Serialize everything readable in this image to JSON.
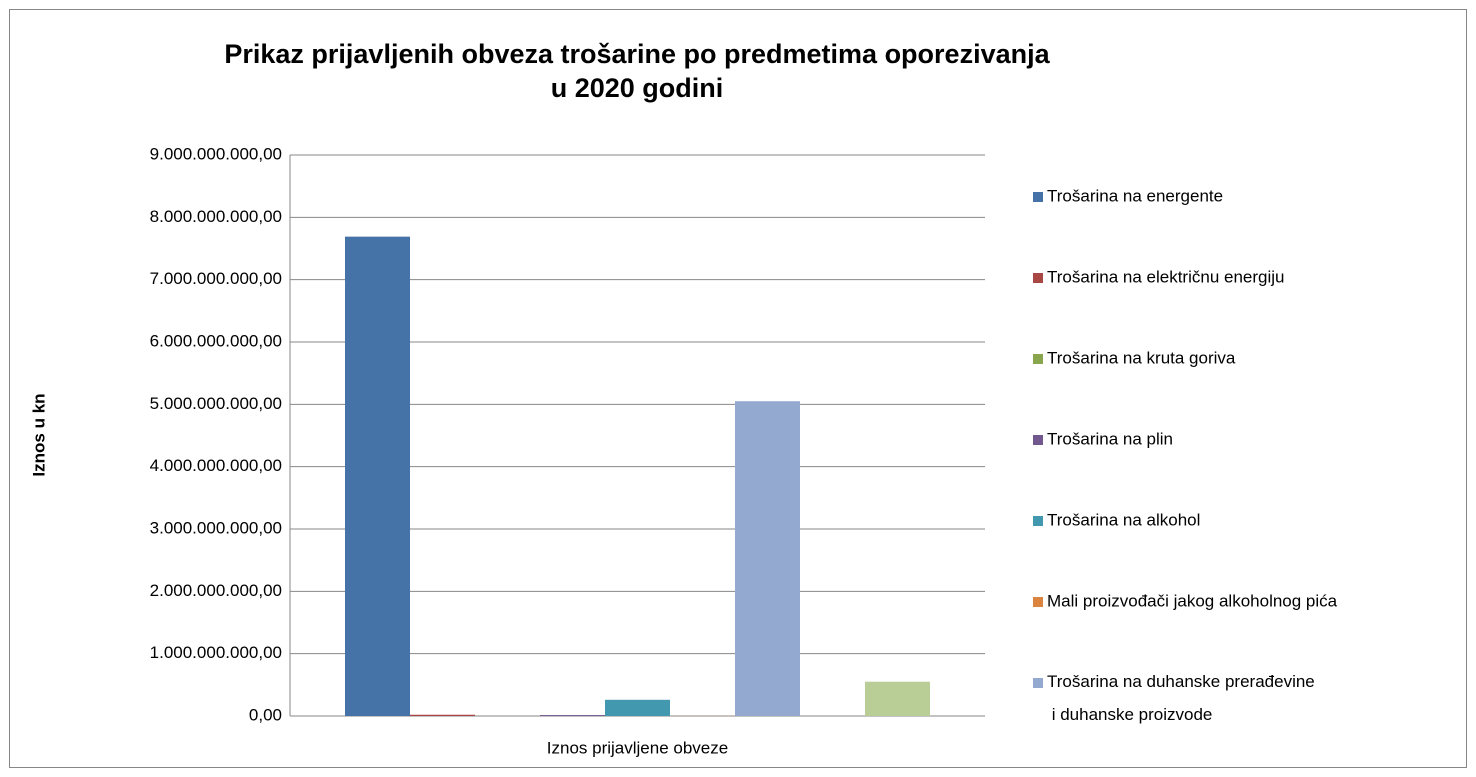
{
  "chart_data": {
    "type": "bar",
    "title": "Prikaz prijavljenih obveza trošarine po predmetima oporezivanja\nu 2020 godini",
    "y_label": "Iznos u kn",
    "categories": [
      "Iznos prijavljene obveze"
    ],
    "ylim": [
      0,
      9000000000
    ],
    "yticks": [
      {
        "value": 0,
        "label": "0,00"
      },
      {
        "value": 1000000000,
        "label": "1.000.000.000,00"
      },
      {
        "value": 2000000000,
        "label": "2.000.000.000,00"
      },
      {
        "value": 3000000000,
        "label": "3.000.000.000,00"
      },
      {
        "value": 4000000000,
        "label": "4.000.000.000,00"
      },
      {
        "value": 5000000000,
        "label": "5.000.000.000,00"
      },
      {
        "value": 6000000000,
        "label": "6.000.000.000,00"
      },
      {
        "value": 7000000000,
        "label": "7.000.000.000,00"
      },
      {
        "value": 8000000000,
        "label": "8.000.000.000,00"
      },
      {
        "value": 9000000000,
        "label": "9.000.000.000,00"
      }
    ],
    "grid": true,
    "legend": "right",
    "series": [
      {
        "name": "Trošarina na energente",
        "color": "#4572A7",
        "values": [
          7690000000
        ]
      },
      {
        "name": "Trošarina na električnu energiju",
        "color": "#AA4643",
        "values": [
          20000000
        ]
      },
      {
        "name": "Trošarina na kruta goriva",
        "color": "#89A54E",
        "values": [
          1000000
        ]
      },
      {
        "name": "Trošarina na plin",
        "color": "#71588F",
        "values": [
          15000000
        ]
      },
      {
        "name": "Trošarina na alkohol",
        "color": "#4198AF",
        "values": [
          260000000
        ]
      },
      {
        "name": "Mali proizvođači jakog alkoholnog pića",
        "color": "#DB843D",
        "values": [
          2000000
        ]
      },
      {
        "name": "Trošarina na duhanske prerađevine\n i duhanske proizvode",
        "color": "#93A9CF",
        "values": [
          5050000000
        ]
      },
      {
        "name": null,
        "color": "#D19392",
        "values": [
          null
        ]
      },
      {
        "name": null,
        "color": "#B9CD96",
        "values": [
          550000000
        ]
      }
    ]
  }
}
